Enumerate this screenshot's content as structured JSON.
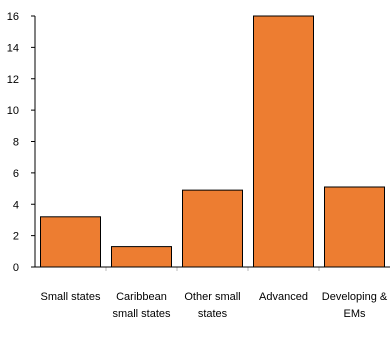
{
  "chart_data": {
    "type": "bar",
    "title": "",
    "xlabel": "",
    "ylabel": "",
    "ylim": [
      0,
      16
    ],
    "yticks": [
      0,
      2,
      4,
      6,
      8,
      10,
      12,
      14,
      16
    ],
    "grid": false,
    "legend": "none",
    "bar_color": "#ED7D31",
    "categories": [
      [
        "Small states"
      ],
      [
        "Caribbean",
        "small states"
      ],
      [
        "Other small",
        "states"
      ],
      [
        "Advanced"
      ],
      [
        "Developing &",
        "EMs"
      ]
    ],
    "values": [
      3.2,
      1.3,
      4.9,
      16.0,
      5.1
    ]
  }
}
